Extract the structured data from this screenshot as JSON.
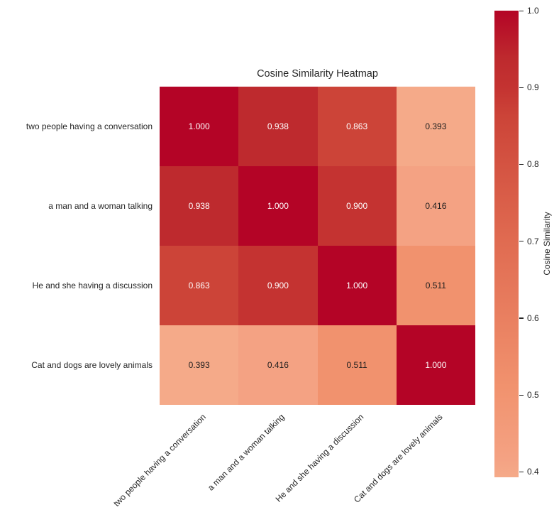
{
  "title": "Cosine Similarity Heatmap",
  "chart_data": {
    "type": "heatmap",
    "title": "Cosine Similarity Heatmap",
    "x_labels": [
      "two people having a conversation",
      "a man and a woman talking",
      "He and she having a discussion",
      "Cat and dogs are lovely animals"
    ],
    "y_labels": [
      "two people having a conversation",
      "a man and a woman talking",
      "He and she having a discussion",
      "Cat and dogs are lovely animals"
    ],
    "values": [
      [
        1.0,
        0.938,
        0.863,
        0.393
      ],
      [
        0.938,
        1.0,
        0.9,
        0.416
      ],
      [
        0.863,
        0.9,
        1.0,
        0.511
      ],
      [
        0.393,
        0.416,
        0.511,
        1.0
      ]
    ],
    "value_decimals": 3,
    "cell_colors": [
      [
        "#b40426",
        "#be2a2e",
        "#cc4438",
        "#f5aa89"
      ],
      [
        "#be2a2e",
        "#b40426",
        "#c43331",
        "#f4a283"
      ],
      [
        "#cc4438",
        "#c43331",
        "#b40426",
        "#f1926e"
      ],
      [
        "#f5aa89",
        "#f4a283",
        "#f1926e",
        "#b40426"
      ]
    ],
    "annotation_text_light": "#ffffff",
    "annotation_text_dark": "#1d1d1d",
    "light_text_min_value": 0.7,
    "background": "#ffffff",
    "text_color": "#262626",
    "grid": false,
    "colorbar": {
      "label": "Cosine Similarity",
      "position": "right",
      "vmin": 0.393,
      "vmax": 1.0,
      "tick_labels": [
        "1.0",
        "0.9",
        "0.8",
        "0.7",
        "0.6",
        "0.5",
        "0.4"
      ],
      "tick_values": [
        1.0,
        0.9,
        0.8,
        0.7,
        0.6,
        0.5,
        0.4
      ],
      "gradient_stops": [
        {
          "value": 0.393,
          "color": "#f5aa89"
        },
        {
          "value": 0.416,
          "color": "#f4a283"
        },
        {
          "value": 0.511,
          "color": "#f1926e"
        },
        {
          "value": 0.7,
          "color": "#e06b51"
        },
        {
          "value": 0.863,
          "color": "#cc4438"
        },
        {
          "value": 0.9,
          "color": "#c43331"
        },
        {
          "value": 0.938,
          "color": "#be2a2e"
        },
        {
          "value": 1.0,
          "color": "#b40426"
        }
      ]
    }
  }
}
